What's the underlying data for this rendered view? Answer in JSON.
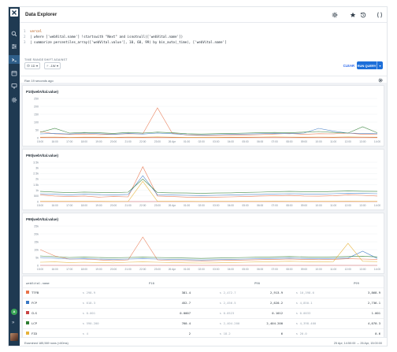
{
  "app": {
    "title": "Data Explorer"
  },
  "sidebar": {
    "avatar_initial": "A",
    "items": [
      {
        "name": "search-icon"
      },
      {
        "name": "sliders-icon"
      },
      {
        "name": "terminal-icon"
      },
      {
        "name": "calendar-icon"
      },
      {
        "name": "monitor-icon"
      },
      {
        "name": "settings-icon"
      }
    ],
    "expand": "»"
  },
  "toolbar": {
    "icons": [
      "gear-icon",
      "star-icon",
      "history-icon",
      "code-braces-icon"
    ]
  },
  "query": {
    "lines": [
      {
        "n": "1",
        "text": "vercel"
      },
      {
        "n": "2",
        "text": "| where ['webVital.name'] !startswith \"Next\" and isnotnull(['webVital.name'])"
      },
      {
        "n": "3",
        "text": "| summarize percentiles_array(['webVital.value'], 10, 60, 99) by bin_auto(_time), ['webVital.name']"
      }
    ]
  },
  "controls": {
    "time_range_label": "TIME RANGE",
    "time_range_value": "1D",
    "shift_label": "SHIFT AGAINST",
    "shift_value": "-1W",
    "clear_label": "CLEAR",
    "run_label": "RUN QUERY"
  },
  "status": {
    "text": "Ran 19 seconds ago"
  },
  "charts": [
    {
      "title": "P10(webVital.value)"
    },
    {
      "title": "P90(webVital.value)"
    },
    {
      "title": "P99(webVital.value)"
    }
  ],
  "chart_data": [
    {
      "type": "line",
      "title": "P10(webVital.value)",
      "xlabel": "",
      "ylabel": "",
      "x": [
        "15:00",
        "16:00",
        "17:00",
        "18:00",
        "19:00",
        "20:00",
        "21:00",
        "22:00",
        "23:00",
        "26 Apr",
        "01:00",
        "02:00",
        "03:00",
        "04:00",
        "05:00",
        "06:00",
        "07:00",
        "08:00",
        "09:00",
        "10:00",
        "11:00",
        "12:00",
        "13:00",
        "14:00"
      ],
      "ylim": [
        0,
        250
      ],
      "yticks": [
        0,
        50,
        100,
        150,
        200,
        250
      ],
      "series": [
        {
          "name": "TTFB",
          "color": "#e8734a",
          "values": [
            40,
            25,
            22,
            24,
            20,
            22,
            26,
            25,
            190,
            30,
            18,
            15,
            14,
            16,
            18,
            20,
            24,
            28,
            22,
            26,
            25,
            30,
            22,
            24
          ]
        },
        {
          "name": "FCP",
          "color": "#3a78c4",
          "values": [
            25,
            28,
            24,
            30,
            26,
            22,
            28,
            24,
            30,
            26,
            20,
            18,
            20,
            22,
            24,
            26,
            28,
            26,
            30,
            60,
            42,
            30,
            28,
            26
          ]
        },
        {
          "name": "CLS",
          "color": "#c94545",
          "values": [
            1,
            1,
            1,
            1,
            1,
            1,
            1,
            1,
            1,
            1,
            1,
            1,
            1,
            1,
            1,
            1,
            1,
            1,
            1,
            1,
            1,
            1,
            1,
            1
          ]
        },
        {
          "name": "LCP",
          "color": "#2e7d32",
          "values": [
            35,
            60,
            30,
            34,
            32,
            28,
            34,
            30,
            36,
            32,
            26,
            24,
            26,
            28,
            30,
            32,
            34,
            32,
            36,
            40,
            34,
            30,
            70,
            32
          ]
        },
        {
          "name": "FID",
          "color": "#e6b23a",
          "values": [
            4,
            5,
            3,
            4,
            4,
            3,
            5,
            4,
            6,
            4,
            3,
            3,
            3,
            4,
            4,
            5,
            6,
            5,
            4,
            5,
            4,
            6,
            5,
            4
          ]
        }
      ]
    },
    {
      "type": "line",
      "title": "P90(webVital.value)",
      "xlabel": "",
      "ylabel": "",
      "x": [
        "15:00",
        "16:00",
        "17:00",
        "18:00",
        "19:00",
        "20:00",
        "21:00",
        "22:00",
        "23:00",
        "26 Apr",
        "01:00",
        "02:00",
        "03:00",
        "04:00",
        "05:00",
        "06:00",
        "07:00",
        "08:00",
        "09:00",
        "10:00",
        "11:00",
        "12:00",
        "13:00",
        "14:00"
      ],
      "ylim": [
        0,
        3500
      ],
      "yticks": [
        0,
        500,
        1000,
        1500,
        2000,
        2500,
        3000,
        3500
      ],
      "series": [
        {
          "name": "TTFB",
          "color": "#e8734a",
          "values": [
            600,
            500,
            450,
            500,
            400,
            450,
            420,
            3100,
            500,
            450,
            400,
            380,
            400,
            420,
            450,
            500,
            520,
            550,
            500,
            480,
            520,
            600,
            560,
            500
          ]
        },
        {
          "name": "FCP",
          "color": "#3a78c4",
          "values": [
            700,
            650,
            600,
            650,
            620,
            600,
            640,
            2300,
            600,
            580,
            560,
            540,
            560,
            580,
            620,
            640,
            680,
            700,
            680,
            660,
            700,
            740,
            720,
            700
          ]
        },
        {
          "name": "CLS",
          "color": "#c94545",
          "values": [
            1,
            1,
            1,
            1,
            1,
            1,
            1,
            1,
            1,
            1,
            1,
            1,
            1,
            1,
            1,
            1,
            1,
            1,
            1,
            1,
            1,
            1,
            1,
            1
          ]
        },
        {
          "name": "LCP",
          "color": "#2e7d32",
          "values": [
            900,
            850,
            800,
            850,
            820,
            800,
            840,
            2000,
            800,
            780,
            760,
            740,
            760,
            780,
            820,
            840,
            880,
            900,
            880,
            860,
            900,
            940,
            920,
            900
          ]
        },
        {
          "name": "FID",
          "color": "#e6b23a",
          "values": [
            20,
            22,
            18,
            20,
            18,
            16,
            20,
            1800,
            22,
            20,
            18,
            16,
            18,
            20,
            22,
            24,
            26,
            24,
            22,
            20,
            24,
            26,
            24,
            22
          ]
        }
      ]
    },
    {
      "type": "line",
      "title": "P99(webVital.value)",
      "xlabel": "",
      "ylabel": "",
      "x": [
        "15:00",
        "16:00",
        "17:00",
        "18:00",
        "19:00",
        "20:00",
        "21:00",
        "22:00",
        "23:00",
        "26 Apr",
        "01:00",
        "02:00",
        "03:00",
        "04:00",
        "05:00",
        "06:00",
        "07:00",
        "08:00",
        "09:00",
        "10:00",
        "11:00",
        "12:00",
        "13:00",
        "14:00"
      ],
      "ylim": [
        0,
        25000
      ],
      "yticks": [
        0,
        5000,
        10000,
        15000,
        20000,
        25000
      ],
      "series": [
        {
          "name": "TTFB",
          "color": "#e8734a",
          "values": [
            10000,
            6000,
            4000,
            4000,
            3500,
            3000,
            3500,
            18000,
            3500,
            3000,
            3000,
            2800,
            3000,
            3200,
            3400,
            3600,
            3800,
            4000,
            3800,
            3600,
            3800,
            4200,
            4000,
            3800
          ]
        },
        {
          "name": "FCP",
          "color": "#3a78c4",
          "values": [
            5000,
            4500,
            4000,
            4200,
            4000,
            3800,
            4000,
            4200,
            4000,
            3800,
            3600,
            3400,
            3600,
            3800,
            4000,
            4200,
            4400,
            4600,
            4400,
            4200,
            4400,
            4600,
            9000,
            4400
          ]
        },
        {
          "name": "CLS",
          "color": "#c94545",
          "values": [
            1,
            1,
            1,
            1,
            1,
            1,
            1,
            1,
            1,
            1,
            1,
            1,
            1,
            1,
            1,
            1,
            1,
            1,
            1,
            1,
            1,
            1,
            1,
            1
          ]
        },
        {
          "name": "LCP",
          "color": "#2e7d32",
          "values": [
            6000,
            5500,
            5000,
            5200,
            5000,
            4800,
            5000,
            5200,
            5000,
            4800,
            4600,
            4400,
            4600,
            4800,
            5000,
            5200,
            5400,
            5600,
            5400,
            5200,
            5400,
            5600,
            5800,
            5400
          ]
        },
        {
          "name": "FID",
          "color": "#e6b23a",
          "values": [
            2000,
            2200,
            1800,
            2000,
            1800,
            1600,
            2000,
            2200,
            2000,
            1800,
            1600,
            1500,
            1600,
            1800,
            2000,
            2200,
            2400,
            2600,
            2400,
            2200,
            2400,
            14000,
            2600,
            2400
          ]
        }
      ]
    }
  ],
  "table": {
    "headers": [
      "webVital.name",
      "P10",
      "P90",
      "P99"
    ],
    "rows": [
      {
        "name": "TTFB",
        "color": "#e8734a",
        "p10_prev": "298.9",
        "p10": "381.4",
        "p90_prev": "2,472.7",
        "p90": "2,913.9",
        "p99_prev": "10,398.6",
        "p99": "3,868.9"
      },
      {
        "name": "FCP",
        "color": "#3a78c4",
        "p10_prev": "618.3",
        "p10": "452.7",
        "p90_prev": "2,456.5",
        "p90": "2,620.2",
        "p99_prev": "4,850.1",
        "p99": "2,736.1"
      },
      {
        "name": "CLS",
        "color": "#c94545",
        "p10_prev": "0.001",
        "p10": "0.0007",
        "p90_prev": "0.0523",
        "p90": "0.1012",
        "p99_prev": "0.0033",
        "p99": "1.001"
      },
      {
        "name": "LCP",
        "color": "#2e7d32",
        "p10_prev": "590.200",
        "p10": "760.4",
        "p90_prev": "2,404.200",
        "p90": "2,404.200",
        "p99_prev": "4,398.400",
        "p99": "4,070.3"
      },
      {
        "name": "FID",
        "color": "#e6b23a",
        "p10_prev": "4",
        "p10": "2",
        "p90_prev": "18.2",
        "p90": "6",
        "p99_prev": "20.0",
        "p99": "0.6"
      }
    ]
  },
  "footer": {
    "left": "Examined 185,569 rows (<60ms)",
    "right": "25 Apr, 14:50:00 → 26 Apr, 15:00:00"
  }
}
